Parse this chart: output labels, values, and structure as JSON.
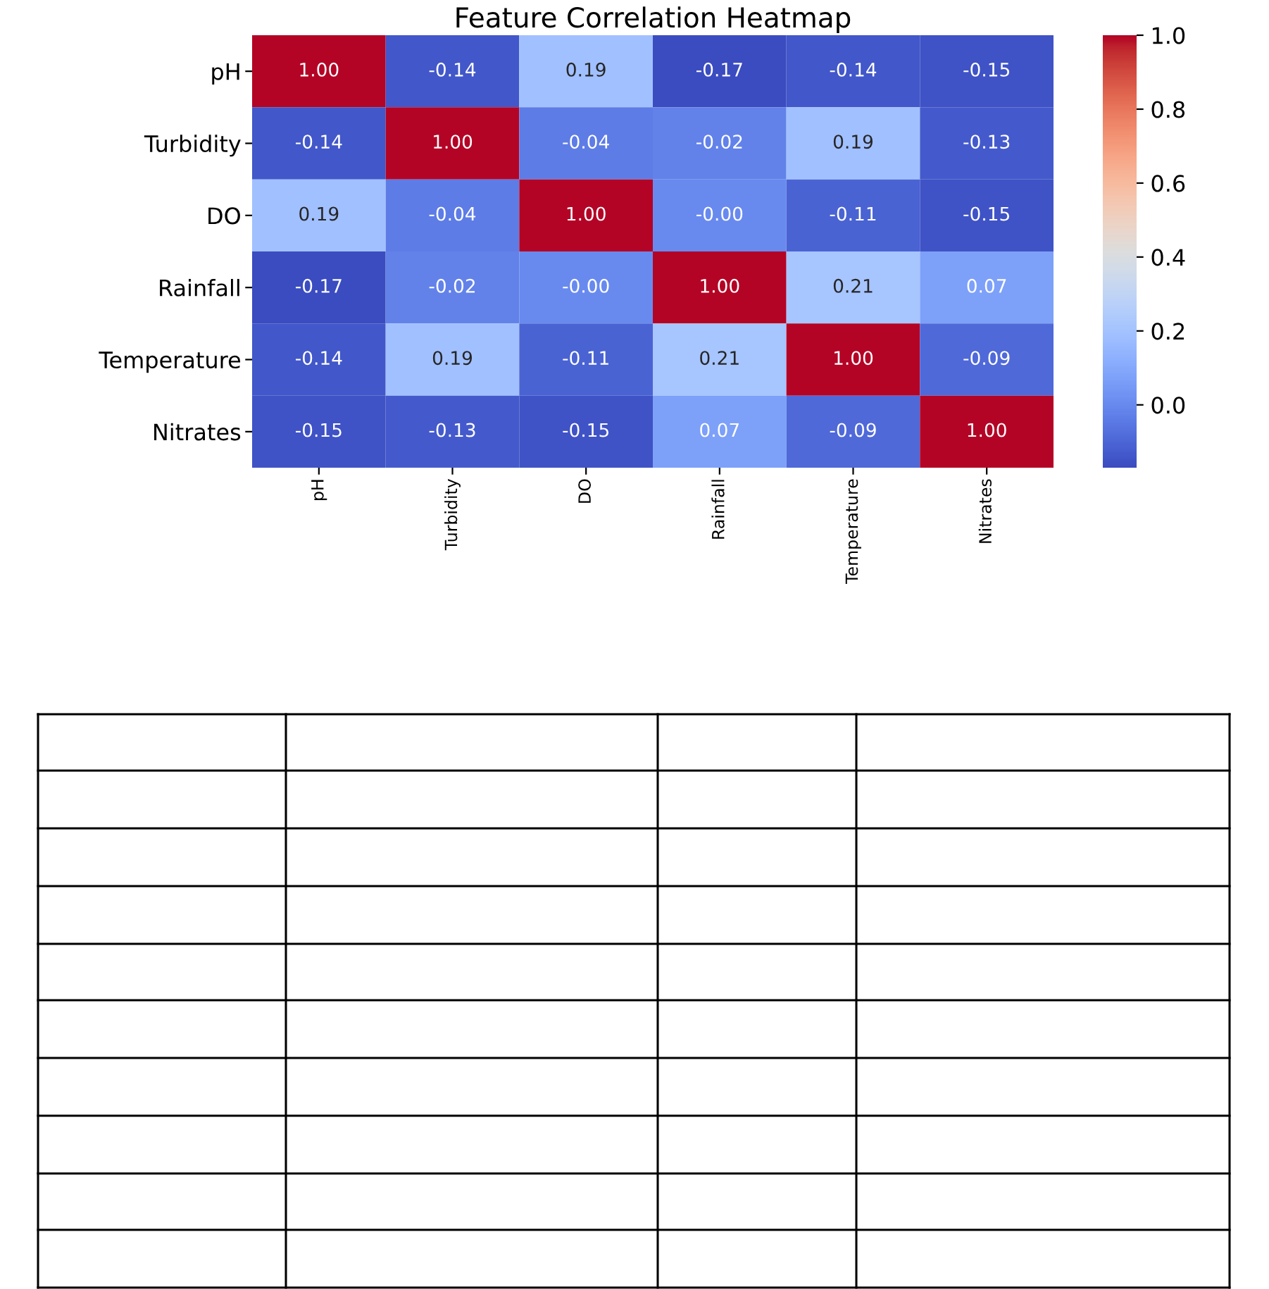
{
  "chart_data": {
    "type": "heatmap",
    "title": "Feature Correlation Heatmap",
    "categories": [
      "pH",
      "Turbidity",
      "DO",
      "Rainfall",
      "Temperature",
      "Nitrates"
    ],
    "y_categories": [
      "pH",
      "Turbidity",
      "DO",
      "Rainfall",
      "Temperature",
      "Nitrates"
    ],
    "cells": [
      [
        1.0,
        -0.14,
        0.19,
        -0.17,
        -0.14,
        -0.15
      ],
      [
        -0.14,
        1.0,
        -0.04,
        -0.02,
        0.19,
        -0.13
      ],
      [
        0.19,
        -0.04,
        1.0,
        0.0,
        -0.11,
        -0.15
      ],
      [
        -0.17,
        -0.02,
        0.0,
        1.0,
        0.21,
        0.07
      ],
      [
        -0.14,
        0.19,
        -0.11,
        0.21,
        1.0,
        -0.09
      ],
      [
        -0.15,
        -0.13,
        -0.15,
        0.07,
        -0.09,
        1.0
      ]
    ],
    "cell_labels": [
      [
        "1.00",
        "-0.14",
        "0.19",
        "-0.17",
        "-0.14",
        "-0.15"
      ],
      [
        "-0.14",
        "1.00",
        "-0.04",
        "-0.02",
        "0.19",
        "-0.13"
      ],
      [
        "0.19",
        "-0.04",
        "1.00",
        "-0.00",
        "-0.11",
        "-0.15"
      ],
      [
        "-0.17",
        "-0.02",
        "-0.00",
        "1.00",
        "0.21",
        "0.07"
      ],
      [
        "-0.14",
        "0.19",
        "-0.11",
        "0.21",
        "1.00",
        "-0.09"
      ],
      [
        "-0.15",
        "-0.13",
        "-0.15",
        "0.07",
        "-0.09",
        "1.00"
      ]
    ],
    "clim": [
      -0.17,
      1.0
    ],
    "cticks": [
      {
        "value": 0,
        "label": "0.0"
      },
      {
        "value": 0.2,
        "label": "0.2"
      },
      {
        "value": 0.4,
        "label": "0.4"
      },
      {
        "value": 0.6,
        "label": "0.6"
      },
      {
        "value": 0.8,
        "label": "0.8"
      },
      {
        "value": 1.0,
        "label": "1.0"
      }
    ]
  }
}
